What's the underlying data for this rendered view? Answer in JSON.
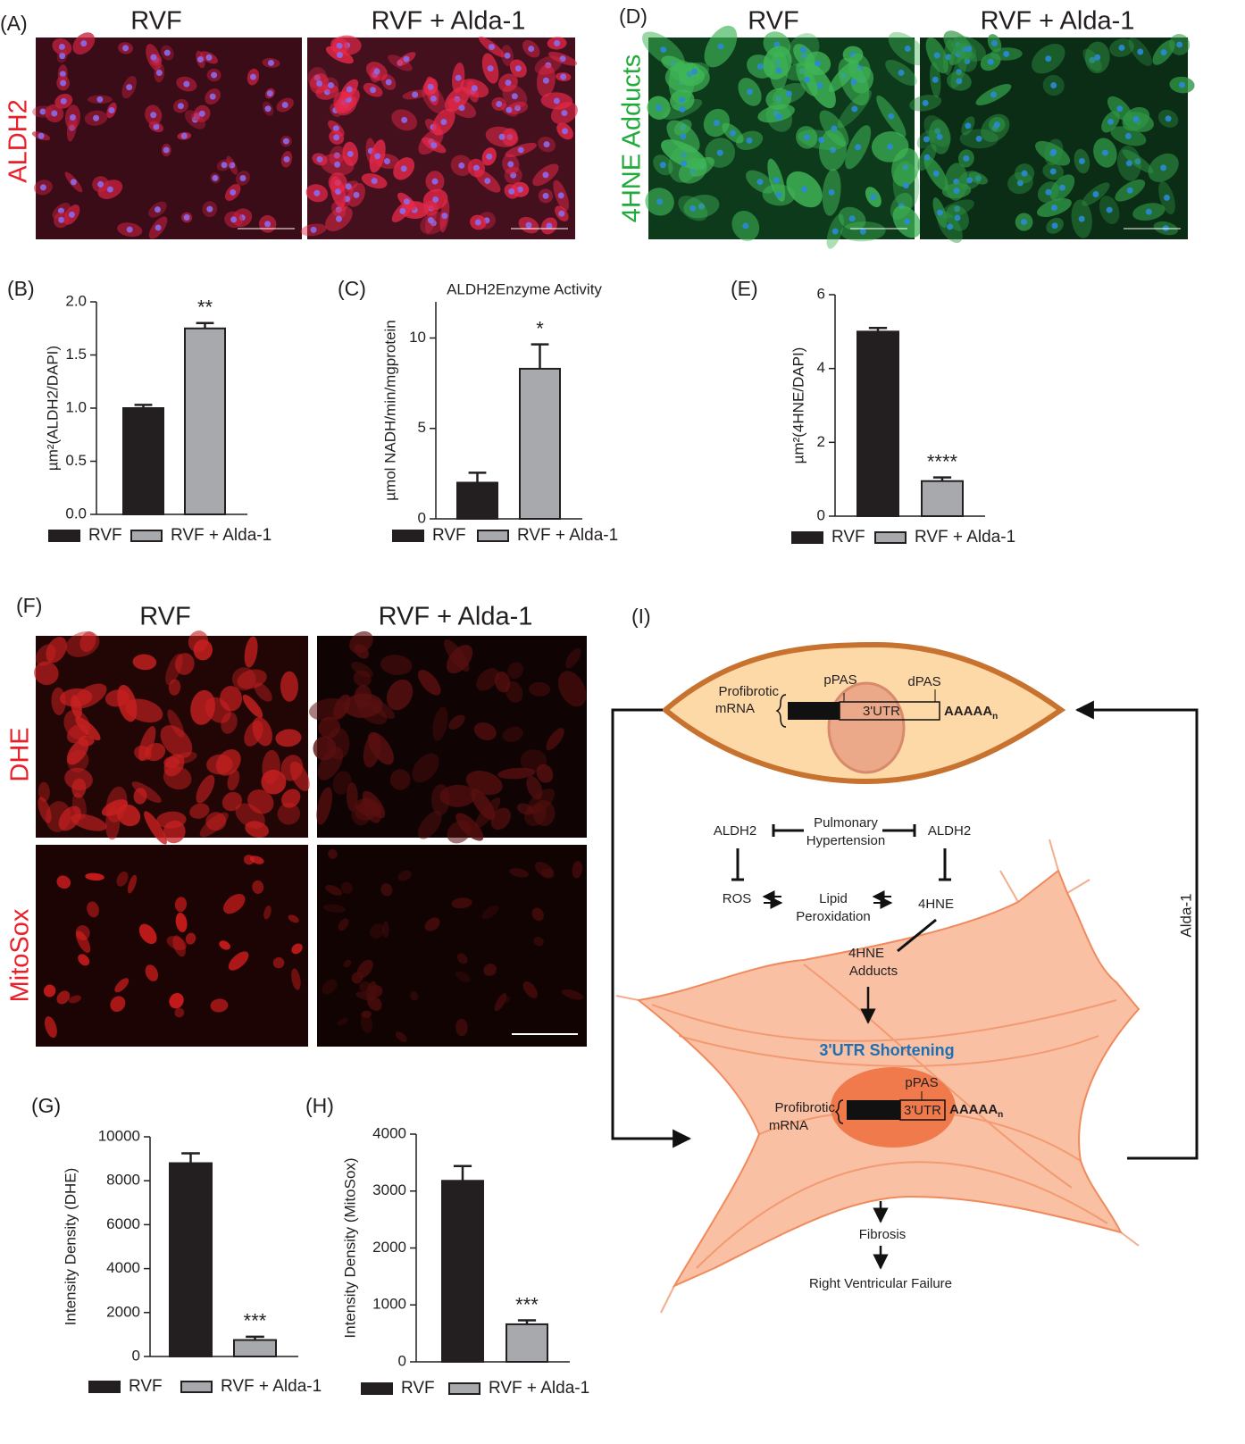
{
  "chart_data": [
    {
      "type": "bar",
      "label": "(B)",
      "y_label": "µm²(ALDH2/DAPI)",
      "categories": [
        "RVF",
        "RVF + Alda-1"
      ],
      "colors": [
        "#231f20",
        "#a7a9ac"
      ],
      "values": [
        1.0,
        1.75
      ],
      "errors": [
        0.03,
        0.05
      ],
      "annotations": [
        null,
        "**"
      ],
      "ylim": [
        0,
        2
      ],
      "yticks": [
        {
          "value": 0,
          "label": "0.0"
        },
        {
          "value": 0.5,
          "label": "0.5"
        },
        {
          "value": 1,
          "label": "1.0"
        },
        {
          "value": 1.5,
          "label": "1.5"
        },
        {
          "value": 2,
          "label": "2.0"
        }
      ]
    },
    {
      "type": "bar",
      "label": "(C)",
      "title": "ALDH2Enzyme Activity",
      "y_label": "µmol NADH/min/mgprotein",
      "categories": [
        "RVF",
        "RVF + Alda-1"
      ],
      "colors": [
        "#231f20",
        "#a7a9ac"
      ],
      "values": [
        2.0,
        8.3
      ],
      "errors": [
        0.55,
        1.35
      ],
      "annotations": [
        null,
        "*"
      ],
      "ylim": [
        0,
        12
      ],
      "yticks": [
        0,
        5,
        10
      ]
    },
    {
      "type": "bar",
      "label": "(E)",
      "y_label": "µm²(4HNE/DAPI)",
      "categories": [
        "RVF",
        "RVF + Alda-1"
      ],
      "colors": [
        "#231f20",
        "#a7a9ac"
      ],
      "values": [
        5.0,
        0.95
      ],
      "errors": [
        0.1,
        0.1
      ],
      "annotations": [
        null,
        "****"
      ],
      "ylim": [
        0,
        6
      ],
      "yticks": [
        0,
        2,
        4,
        6
      ]
    },
    {
      "type": "bar",
      "label": "(G)",
      "y_label": "Intensity Density (DHE)",
      "categories": [
        "RVF",
        "RVF + Alda-1"
      ],
      "colors": [
        "#231f20",
        "#a7a9ac"
      ],
      "values": [
        8800,
        750
      ],
      "errors": [
        450,
        150
      ],
      "annotations": [
        null,
        "***"
      ],
      "ylim": [
        0,
        10000
      ],
      "yticks": [
        0,
        2000,
        4000,
        6000,
        8000,
        10000
      ]
    },
    {
      "type": "bar",
      "label": "(H)",
      "y_label": "Intensity Density (MitoSox)",
      "categories": [
        "RVF",
        "RVF + Alda-1"
      ],
      "colors": [
        "#231f20",
        "#a7a9ac"
      ],
      "values": [
        3180,
        660
      ],
      "errors": [
        260,
        70
      ],
      "annotations": [
        null,
        "***"
      ],
      "ylim": [
        0,
        4000
      ],
      "yticks": [
        0,
        1000,
        2000,
        3000,
        4000
      ]
    }
  ],
  "panels": {
    "A": {
      "label": "(A)",
      "columns": [
        "RVF",
        "RVF + Alda-1"
      ],
      "stain": "ALDH2"
    },
    "D": {
      "label": "(D)",
      "columns": [
        "RVF",
        "RVF + Alda-1"
      ],
      "stain": "4HNE Adducts"
    },
    "F": {
      "label": "(F)",
      "columns": [
        "RVF",
        "RVF + Alda-1"
      ],
      "rows": [
        "DHE",
        "MitoSox"
      ]
    }
  },
  "diagram": {
    "label": "(I)",
    "top_cell": {
      "mrna": [
        "Profibrotic",
        "mRNA"
      ],
      "ppas": "pPAS",
      "dpas": "dPAS",
      "utr": "3'UTR",
      "poly_a": "AAAAA",
      "poly_a_sub": "n"
    },
    "pathway": {
      "aldh2_left": "ALDH2",
      "ph": [
        "Pulmonary",
        "Hypertension"
      ],
      "aldh2_right": "ALDH2",
      "ros": "ROS",
      "lipid": [
        "Lipid",
        "Peroxidation"
      ],
      "hne": "4HNE",
      "adducts": [
        "4HNE",
        "Adducts"
      ]
    },
    "bottom_cell": {
      "shortening": "3'UTR Shortening",
      "mrna": [
        "Profibrotic",
        "mRNA"
      ],
      "ppas": "pPAS",
      "utr": "3'UTR",
      "poly_a": "AAAAA",
      "poly_a_sub": "n"
    },
    "fibrosis": "Fibrosis",
    "failure": "Right Ventricular Failure",
    "treatment": "Alda-1"
  }
}
